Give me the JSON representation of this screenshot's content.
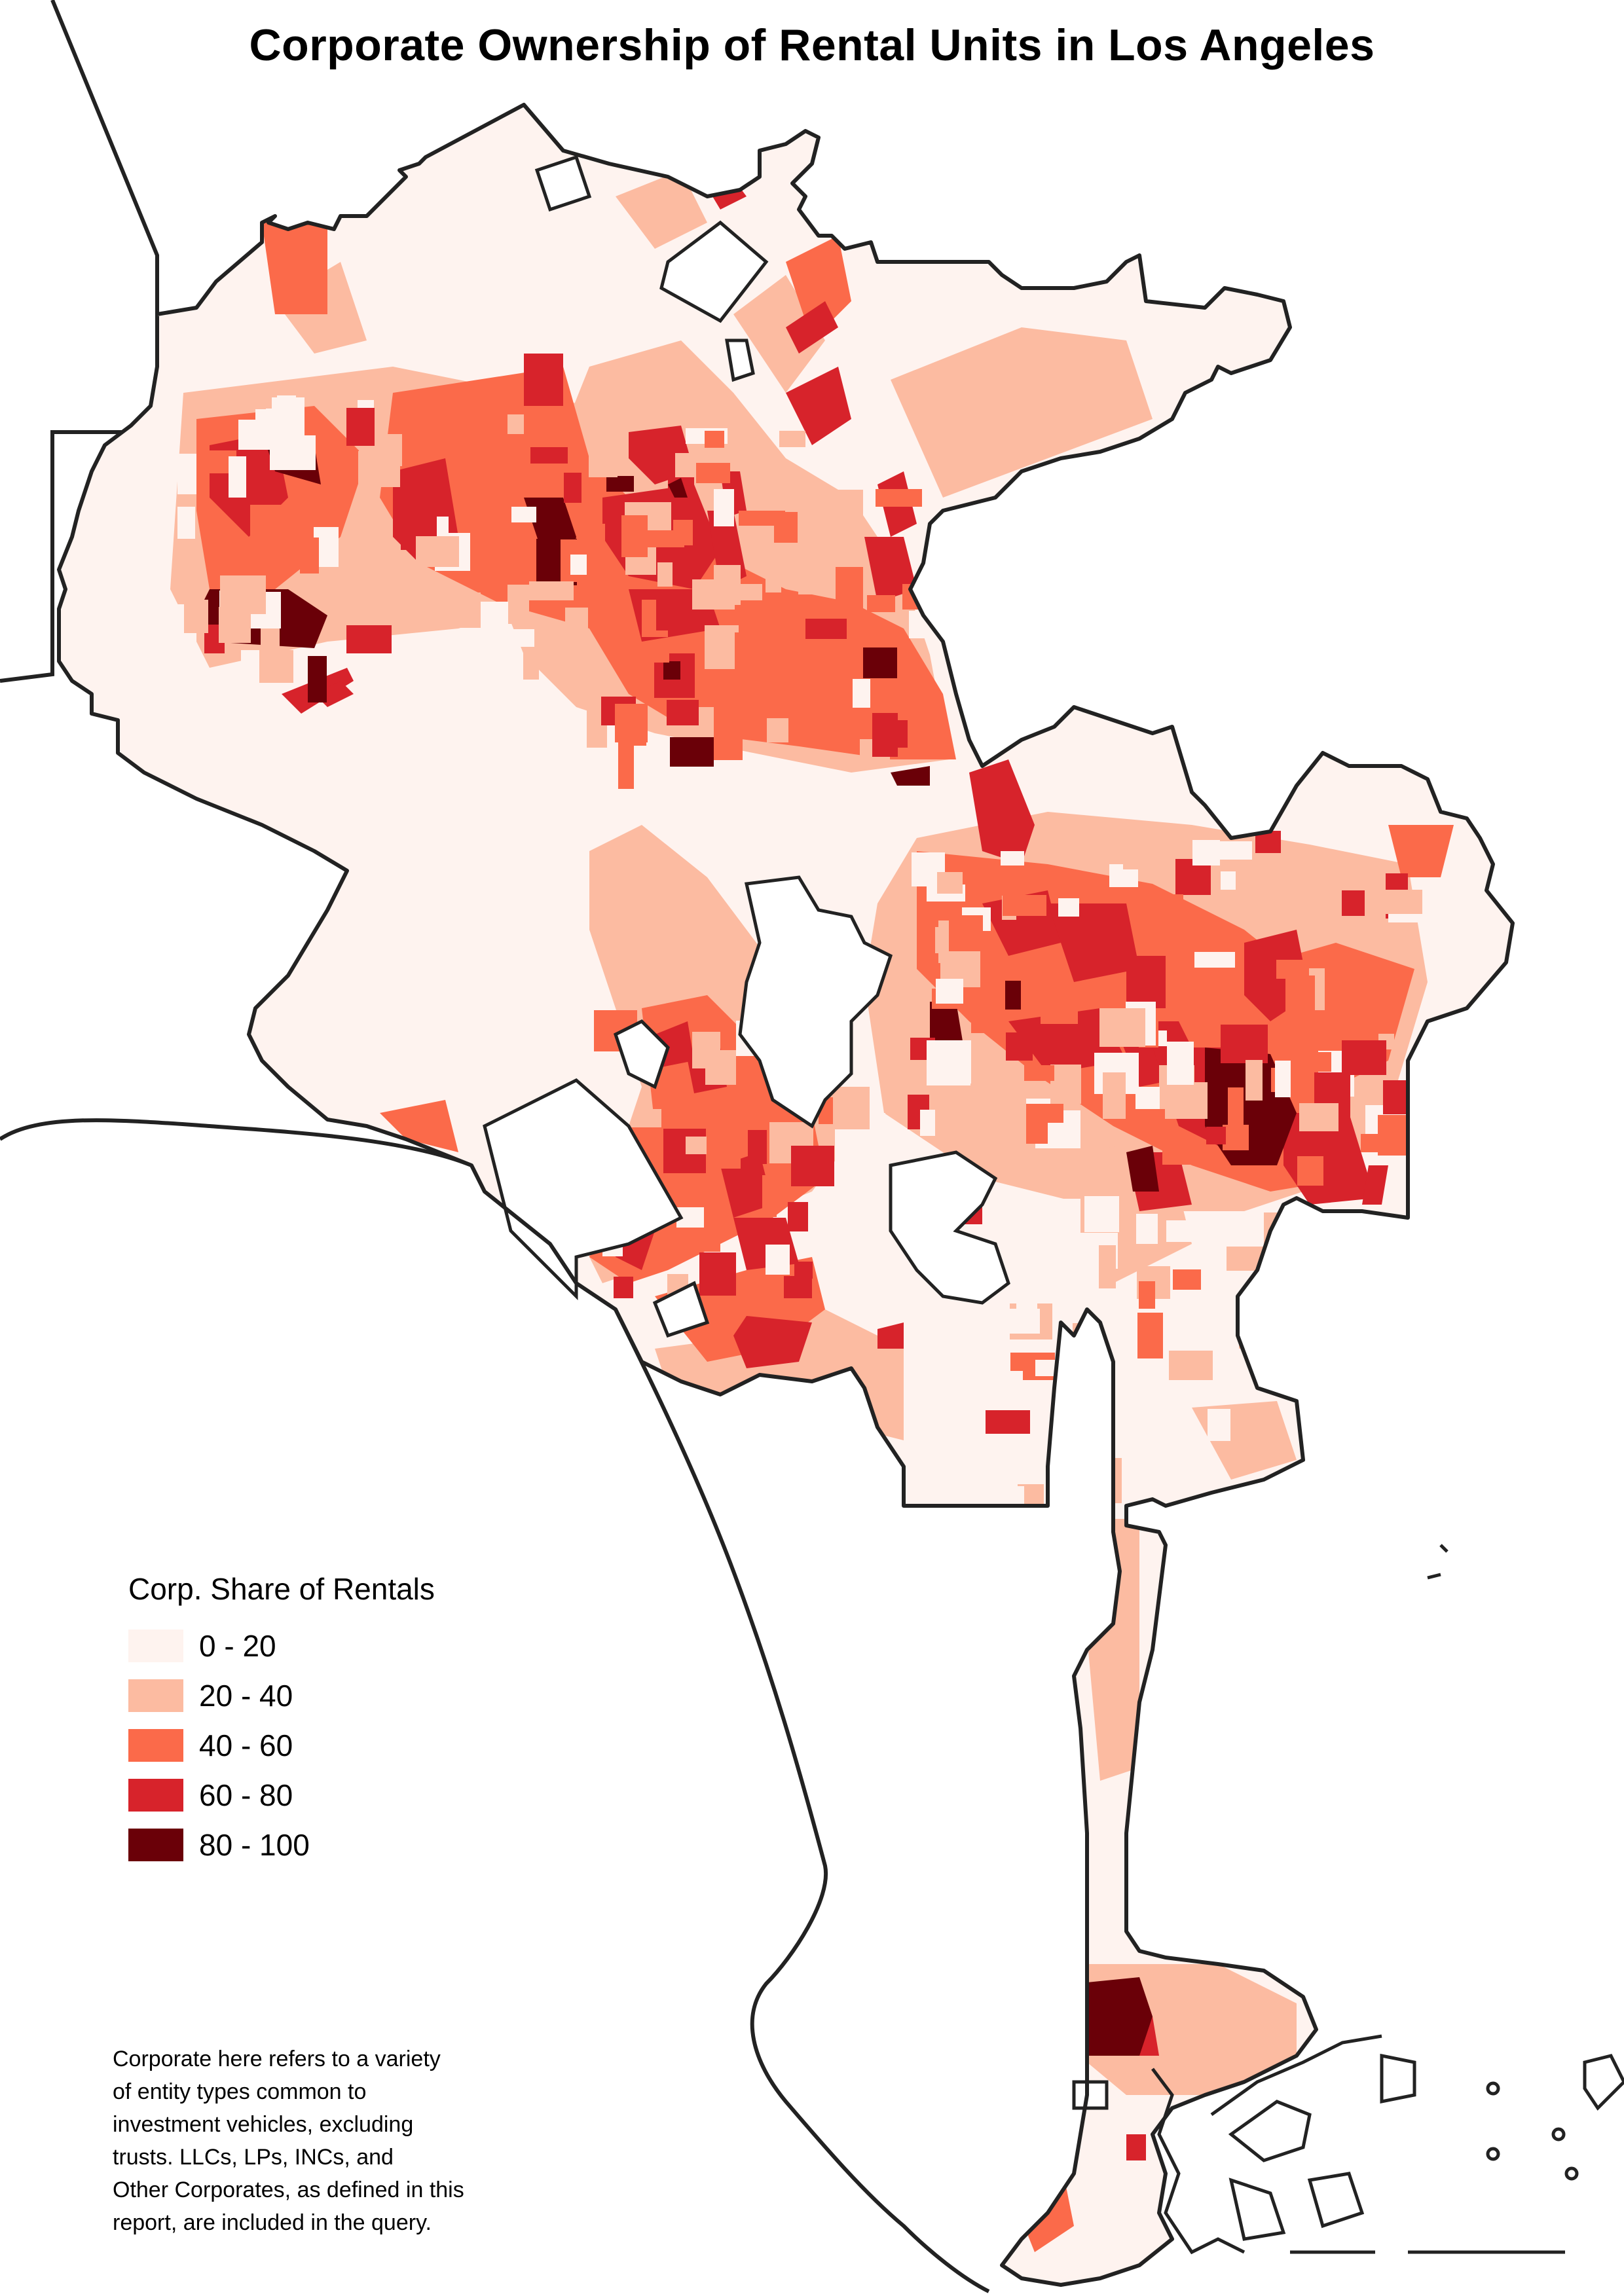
{
  "title": "Corporate Ownership of Rental Units in Los Angeles",
  "legend": {
    "title": "Corp. Share of Rentals",
    "classes": [
      {
        "label": "0 - 20",
        "color": "#fef3ef"
      },
      {
        "label": "20 - 40",
        "color": "#fcbba1"
      },
      {
        "label": "40 - 60",
        "color": "#fb6a4a"
      },
      {
        "label": "60 - 80",
        "color": "#d7232b"
      },
      {
        "label": "80 - 100",
        "color": "#6a0008"
      }
    ]
  },
  "footnote": [
    "Corporate here refers to a variety",
    "of entity types common to",
    "investment vehicles, excluding",
    "trusts. LLCs, LPs, INCs, and",
    "Other Corporates, as defined in this",
    "report, are included in the query."
  ]
}
